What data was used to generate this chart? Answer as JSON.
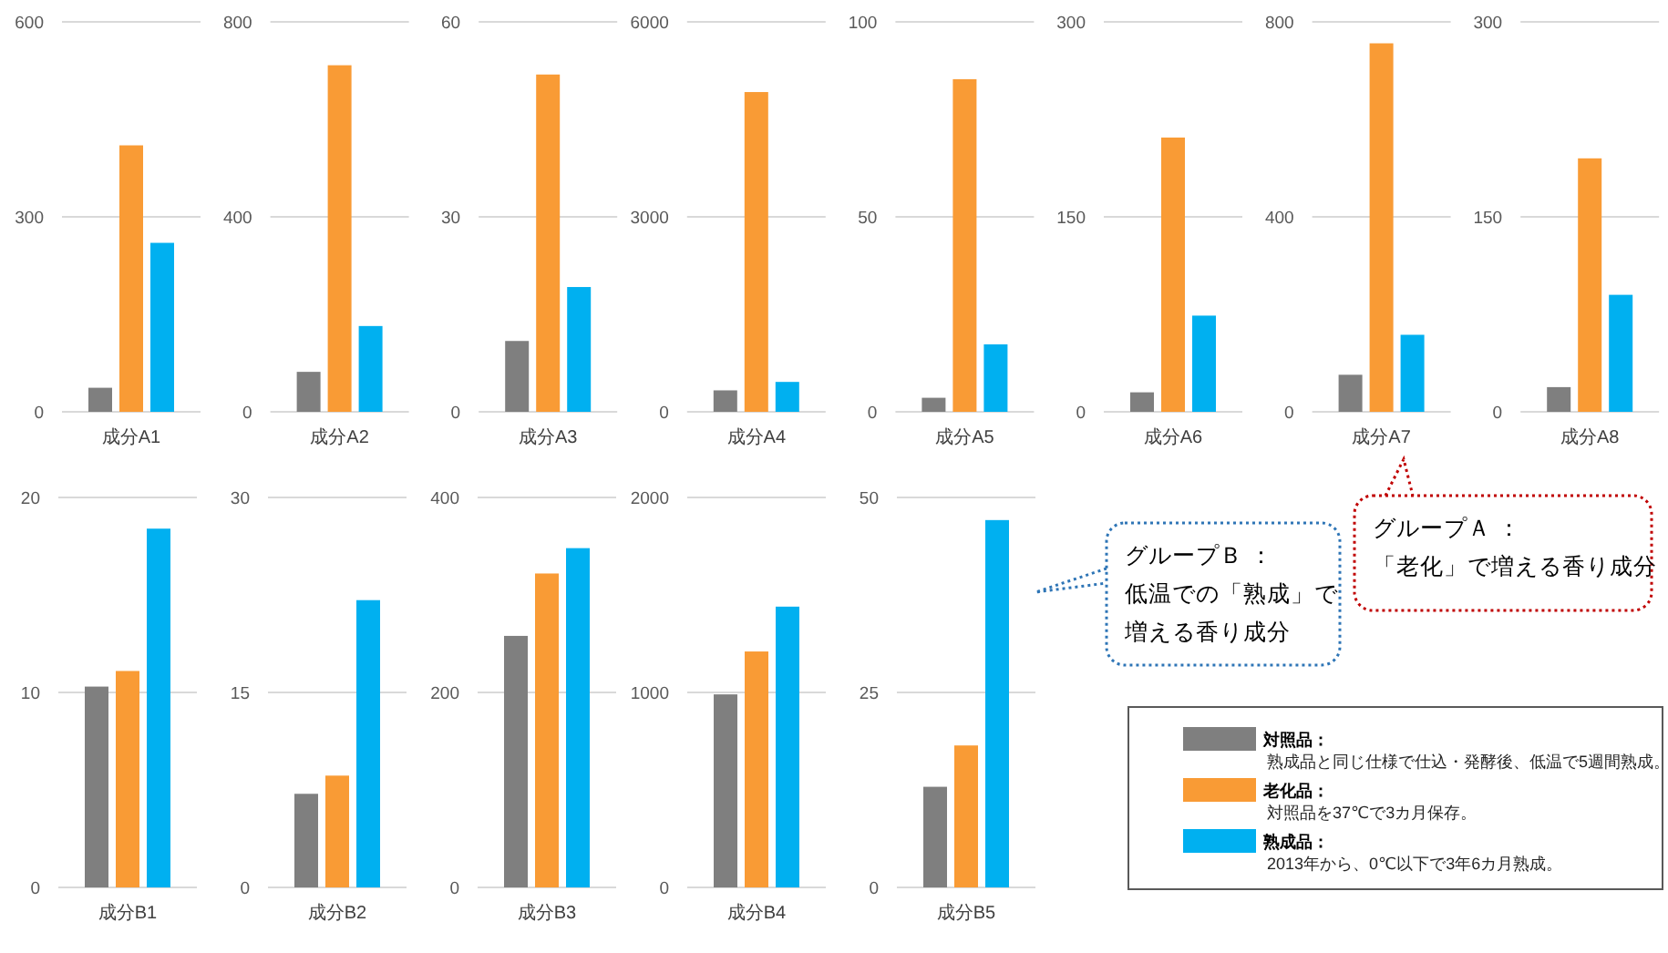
{
  "chart_data": [
    {
      "type": "bar",
      "categories": [
        "成分A1"
      ],
      "ylim": [
        0,
        600
      ],
      "yticks": [
        0,
        300,
        600
      ],
      "grid": "y",
      "series": [
        {
          "color": "#7f7f7f",
          "values": [
            37
          ]
        },
        {
          "color": "#f99b35",
          "values": [
            410
          ]
        },
        {
          "color": "#00b0f0",
          "values": [
            260
          ]
        }
      ]
    },
    {
      "type": "bar",
      "categories": [
        "成分A2"
      ],
      "ylim": [
        0,
        800
      ],
      "yticks": [
        0,
        400,
        800
      ],
      "grid": "y",
      "series": [
        {
          "color": "#7f7f7f",
          "values": [
            82
          ]
        },
        {
          "color": "#f99b35",
          "values": [
            711
          ]
        },
        {
          "color": "#00b0f0",
          "values": [
            176
          ]
        }
      ]
    },
    {
      "type": "bar",
      "categories": [
        "成分A3"
      ],
      "ylim": [
        0,
        60
      ],
      "yticks": [
        0,
        30,
        60
      ],
      "grid": "y",
      "series": [
        {
          "color": "#7f7f7f",
          "values": [
            10.9
          ]
        },
        {
          "color": "#f99b35",
          "values": [
            51.9
          ]
        },
        {
          "color": "#00b0f0",
          "values": [
            19.2
          ]
        }
      ]
    },
    {
      "type": "bar",
      "categories": [
        "成分A4"
      ],
      "ylim": [
        0,
        6000
      ],
      "yticks": [
        0,
        3000,
        6000
      ],
      "grid": "y",
      "series": [
        {
          "color": "#7f7f7f",
          "values": [
            330
          ]
        },
        {
          "color": "#f99b35",
          "values": [
            4920
          ]
        },
        {
          "color": "#00b0f0",
          "values": [
            460
          ]
        }
      ]
    },
    {
      "type": "bar",
      "categories": [
        "成分A5"
      ],
      "ylim": [
        0,
        100
      ],
      "yticks": [
        0,
        50,
        100
      ],
      "grid": "y",
      "series": [
        {
          "color": "#7f7f7f",
          "values": [
            3.6
          ]
        },
        {
          "color": "#f99b35",
          "values": [
            85.3
          ]
        },
        {
          "color": "#00b0f0",
          "values": [
            17.3
          ]
        }
      ]
    },
    {
      "type": "bar",
      "categories": [
        "成分A6"
      ],
      "ylim": [
        0,
        300
      ],
      "yticks": [
        0,
        150,
        300
      ],
      "grid": "y",
      "series": [
        {
          "color": "#7f7f7f",
          "values": [
            15
          ]
        },
        {
          "color": "#f99b35",
          "values": [
            211
          ]
        },
        {
          "color": "#00b0f0",
          "values": [
            74
          ]
        }
      ]
    },
    {
      "type": "bar",
      "categories": [
        "成分A7"
      ],
      "ylim": [
        0,
        800
      ],
      "yticks": [
        0,
        400,
        800
      ],
      "grid": "y",
      "series": [
        {
          "color": "#7f7f7f",
          "values": [
            76
          ]
        },
        {
          "color": "#f99b35",
          "values": [
            756
          ]
        },
        {
          "color": "#00b0f0",
          "values": [
            158
          ]
        }
      ]
    },
    {
      "type": "bar",
      "categories": [
        "成分A8"
      ],
      "ylim": [
        0,
        300
      ],
      "yticks": [
        0,
        150,
        300
      ],
      "grid": "y",
      "series": [
        {
          "color": "#7f7f7f",
          "values": [
            19
          ]
        },
        {
          "color": "#f99b35",
          "values": [
            195
          ]
        },
        {
          "color": "#00b0f0",
          "values": [
            90
          ]
        }
      ]
    },
    {
      "type": "bar",
      "categories": [
        "成分B1"
      ],
      "ylim": [
        0,
        20
      ],
      "yticks": [
        0,
        10,
        20
      ],
      "grid": "y",
      "series": [
        {
          "color": "#7f7f7f",
          "values": [
            10.3
          ]
        },
        {
          "color": "#f99b35",
          "values": [
            11.1
          ]
        },
        {
          "color": "#00b0f0",
          "values": [
            18.4
          ]
        }
      ]
    },
    {
      "type": "bar",
      "categories": [
        "成分B2"
      ],
      "ylim": [
        0,
        30
      ],
      "yticks": [
        0,
        15,
        30
      ],
      "grid": "y",
      "series": [
        {
          "color": "#7f7f7f",
          "values": [
            7.2
          ]
        },
        {
          "color": "#f99b35",
          "values": [
            8.6
          ]
        },
        {
          "color": "#00b0f0",
          "values": [
            22.1
          ]
        }
      ]
    },
    {
      "type": "bar",
      "categories": [
        "成分B3"
      ],
      "ylim": [
        0,
        400
      ],
      "yticks": [
        0,
        200,
        400
      ],
      "grid": "y",
      "series": [
        {
          "color": "#7f7f7f",
          "values": [
            258
          ]
        },
        {
          "color": "#f99b35",
          "values": [
            322
          ]
        },
        {
          "color": "#00b0f0",
          "values": [
            348
          ]
        }
      ]
    },
    {
      "type": "bar",
      "categories": [
        "成分B4"
      ],
      "ylim": [
        0,
        2000
      ],
      "yticks": [
        0,
        1000,
        2000
      ],
      "grid": "y",
      "series": [
        {
          "color": "#7f7f7f",
          "values": [
            990
          ]
        },
        {
          "color": "#f99b35",
          "values": [
            1210
          ]
        },
        {
          "color": "#00b0f0",
          "values": [
            1440
          ]
        }
      ]
    },
    {
      "type": "bar",
      "categories": [
        "成分B5"
      ],
      "ylim": [
        0,
        50
      ],
      "yticks": [
        0,
        25,
        50
      ],
      "grid": "y",
      "legend": "bottom right",
      "annotations": [
        "熟成品と同じ仕様で仕込・発酵後、低温で5週間熟成。",
        "対照品を37℃で3カ月保存。",
        "2013年から、0℃以下で3年6カ月熟成。"
      ],
      "series": [
        {
          "name": "対照品：",
          "color": "#7f7f7f",
          "values": [
            12.9
          ]
        },
        {
          "name": "老化品：",
          "color": "#f99b35",
          "values": [
            18.2
          ]
        },
        {
          "name": "熟成品：",
          "color": "#00b0f0",
          "values": [
            47.1
          ]
        }
      ]
    },
    {
      "type": "other",
      "annotations": [
        "グループＢ ：",
        "低温での「熟成」で",
        "増える香り成分"
      ]
    },
    {
      "type": "other",
      "annotations": [
        "グループＡ ：",
        "「老化」で増える香り成分"
      ]
    }
  ]
}
